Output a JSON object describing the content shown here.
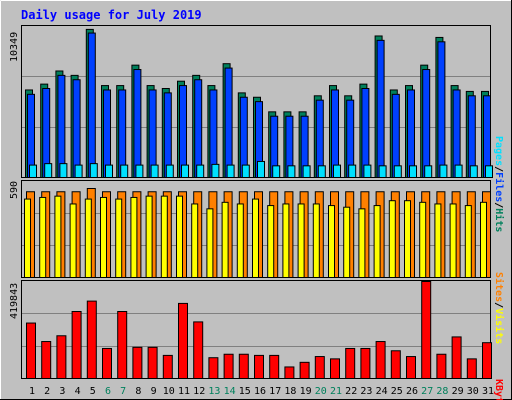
{
  "chart_data": [
    {
      "type": "bar",
      "title": "Daily usage for July 2019",
      "categories": [
        "1",
        "2",
        "3",
        "4",
        "5",
        "6",
        "7",
        "8",
        "9",
        "10",
        "11",
        "12",
        "13",
        "14",
        "15",
        "16",
        "17",
        "18",
        "19",
        "20",
        "21",
        "22",
        "23",
        "24",
        "25",
        "26",
        "27",
        "28",
        "29",
        "30",
        "31"
      ],
      "weekend_days": [
        "6",
        "7",
        "13",
        "14",
        "20",
        "21",
        "27",
        "28"
      ],
      "y_max_label": "10349",
      "ylim": [
        0,
        10349
      ],
      "series": [
        {
          "name": "Hits",
          "values": [
            6000,
            6400,
            7300,
            7000,
            10150,
            6300,
            6300,
            7700,
            6300,
            6100,
            6600,
            7000,
            6300,
            7800,
            5800,
            5500,
            4500,
            4500,
            4500,
            5600,
            6300,
            5600,
            6400,
            9700,
            6000,
            6300,
            7700,
            9600,
            6300,
            5900,
            5900
          ]
        },
        {
          "name": "Files",
          "values": [
            5700,
            6100,
            7000,
            6700,
            9900,
            6000,
            6000,
            7400,
            6000,
            5800,
            6300,
            6700,
            6000,
            7500,
            5500,
            5200,
            4200,
            4200,
            4200,
            5300,
            6000,
            5300,
            6100,
            9400,
            5700,
            6000,
            7400,
            9300,
            6000,
            5600,
            5600
          ]
        },
        {
          "name": "Pages",
          "values": [
            850,
            950,
            950,
            850,
            950,
            850,
            850,
            850,
            850,
            850,
            850,
            850,
            900,
            850,
            850,
            1100,
            800,
            800,
            800,
            800,
            850,
            850,
            850,
            800,
            800,
            800,
            800,
            850,
            850,
            800,
            800
          ]
        }
      ],
      "colors": {
        "Hits": "#00805c",
        "Files": "#0040ff",
        "Pages": "#00e0ff"
      }
    },
    {
      "type": "bar",
      "y_max_label": "590",
      "ylim": [
        0,
        590
      ],
      "series": [
        {
          "name": "Sites",
          "values": [
            527,
            527,
            527,
            527,
            547,
            527,
            527,
            527,
            527,
            527,
            527,
            527,
            527,
            527,
            527,
            527,
            527,
            527,
            527,
            527,
            527,
            527,
            527,
            527,
            527,
            527,
            527,
            527,
            527,
            527,
            527
          ]
        },
        {
          "name": "Visits",
          "values": [
            482,
            492,
            500,
            452,
            482,
            492,
            482,
            492,
            500,
            500,
            500,
            452,
            422,
            462,
            452,
            482,
            442,
            452,
            452,
            452,
            442,
            432,
            422,
            442,
            472,
            472,
            462,
            452,
            452,
            442,
            462
          ]
        }
      ],
      "colors": {
        "Sites": "#ff8000",
        "Visits": "#ffff00"
      }
    },
    {
      "type": "bar",
      "y_max_label": "419843",
      "ylim": [
        0,
        419843
      ],
      "series": [
        {
          "name": "KBytes",
          "values": [
            240000,
            160000,
            185000,
            290000,
            335000,
            130000,
            290000,
            135000,
            135000,
            100000,
            325000,
            245000,
            90000,
            105000,
            105000,
            100000,
            100000,
            50000,
            70000,
            95000,
            85000,
            130000,
            130000,
            160000,
            120000,
            95000,
            419843,
            105000,
            180000,
            85000,
            155000
          ]
        }
      ],
      "colors": {
        "KBytes": "#ff0000"
      }
    }
  ]
}
